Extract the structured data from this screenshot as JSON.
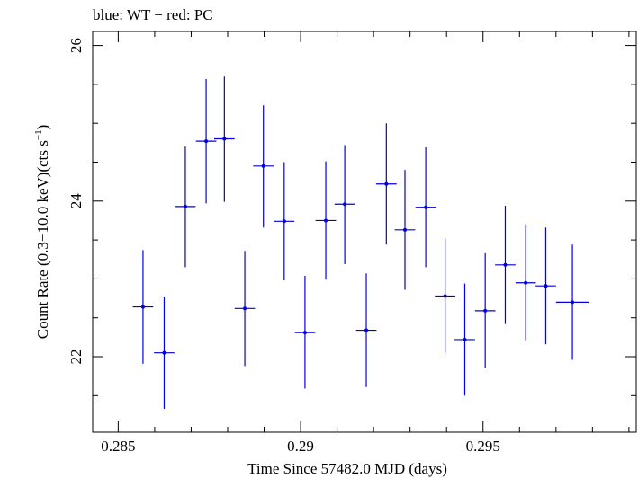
{
  "chart_data": {
    "type": "scatter",
    "title": "blue: WT − red: PC",
    "xlabel": "Time Since 57482.0 MJD (days)",
    "ylabel_main": "Count Rate (0.3−10.0 keV)(cts s",
    "ylabel_sup": "−1",
    "ylabel_close": ")",
    "xlim": [
      0.2843,
      0.2992
    ],
    "ylim": [
      21.03,
      26.18
    ],
    "xticks": [
      0.285,
      0.29,
      0.295
    ],
    "xtick_labels": [
      "0.285",
      "0.29",
      "0.295"
    ],
    "yticks": [
      22,
      24,
      26
    ],
    "ytick_labels": [
      "22",
      "24",
      "26"
    ],
    "grid": false,
    "series": [
      {
        "color": "#0000e0",
        "points": [
          {
            "x": 0.28568,
            "y": 22.64,
            "xerr": 0.00028,
            "ylo": 21.91,
            "yhi": 23.37
          },
          {
            "x": 0.28626,
            "y": 22.05,
            "xerr": 0.00028,
            "ylo": 21.33,
            "yhi": 22.77
          },
          {
            "x": 0.28684,
            "y": 23.93,
            "xerr": 0.00028,
            "ylo": 23.15,
            "yhi": 24.7
          },
          {
            "x": 0.28741,
            "y": 24.77,
            "xerr": 0.00028,
            "ylo": 23.97,
            "yhi": 25.57
          },
          {
            "x": 0.28791,
            "y": 24.8,
            "xerr": 0.00028,
            "ylo": 23.99,
            "yhi": 25.6
          },
          {
            "x": 0.28847,
            "y": 22.62,
            "xerr": 0.00028,
            "ylo": 21.88,
            "yhi": 23.36
          },
          {
            "x": 0.28898,
            "y": 24.45,
            "xerr": 0.00028,
            "ylo": 23.66,
            "yhi": 25.23
          },
          {
            "x": 0.28955,
            "y": 23.74,
            "xerr": 0.00028,
            "ylo": 22.98,
            "yhi": 24.5
          },
          {
            "x": 0.29012,
            "y": 22.31,
            "xerr": 0.00028,
            "ylo": 21.59,
            "yhi": 23.04
          },
          {
            "x": 0.29069,
            "y": 23.75,
            "xerr": 0.00028,
            "ylo": 22.99,
            "yhi": 24.51
          },
          {
            "x": 0.29121,
            "y": 23.96,
            "xerr": 0.00028,
            "ylo": 23.19,
            "yhi": 24.72
          },
          {
            "x": 0.2918,
            "y": 22.34,
            "xerr": 0.00028,
            "ylo": 21.61,
            "yhi": 23.07
          },
          {
            "x": 0.29235,
            "y": 24.22,
            "xerr": 0.00028,
            "ylo": 23.44,
            "yhi": 25.0
          },
          {
            "x": 0.29286,
            "y": 23.63,
            "xerr": 0.00028,
            "ylo": 22.86,
            "yhi": 24.4
          },
          {
            "x": 0.29343,
            "y": 23.92,
            "xerr": 0.00028,
            "ylo": 23.15,
            "yhi": 24.69
          },
          {
            "x": 0.29396,
            "y": 22.78,
            "xerr": 0.00028,
            "ylo": 22.05,
            "yhi": 23.52
          },
          {
            "x": 0.2945,
            "y": 22.22,
            "xerr": 0.00028,
            "ylo": 21.5,
            "yhi": 22.94
          },
          {
            "x": 0.29506,
            "y": 22.59,
            "xerr": 0.00028,
            "ylo": 21.85,
            "yhi": 23.33
          },
          {
            "x": 0.29561,
            "y": 23.18,
            "xerr": 0.00028,
            "ylo": 22.42,
            "yhi": 23.94
          },
          {
            "x": 0.29617,
            "y": 22.95,
            "xerr": 0.00028,
            "ylo": 22.21,
            "yhi": 23.7
          },
          {
            "x": 0.29672,
            "y": 22.91,
            "xerr": 0.00028,
            "ylo": 22.16,
            "yhi": 23.66
          },
          {
            "x": 0.29745,
            "y": 22.7,
            "xerr": 0.00045,
            "ylo": 21.96,
            "yhi": 23.44
          }
        ]
      }
    ]
  }
}
